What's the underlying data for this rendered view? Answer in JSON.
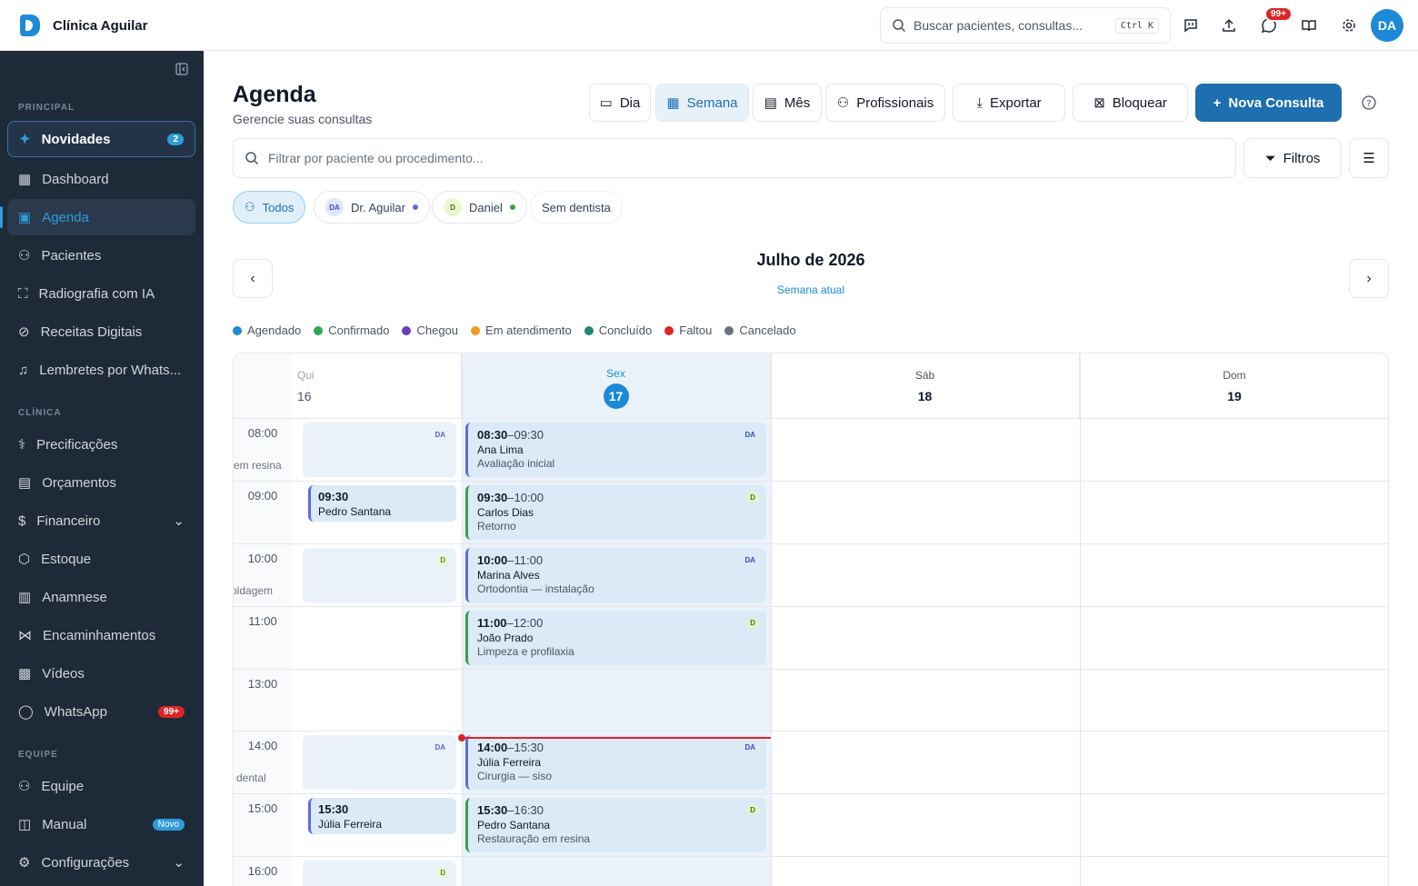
{
  "app": {
    "name": "Clínica Aguilar",
    "user_initials": "DA",
    "notif_badge": "99+"
  },
  "search": {
    "placeholder": "Buscar pacientes, consultas...",
    "shortcut": "Ctrl K"
  },
  "sidebar": {
    "sections": {
      "principal": "PRINCIPAL",
      "clinica": "CLÍNICA",
      "equipe": "EQUIPE"
    },
    "items": [
      {
        "label": "Novidades",
        "badge": "2"
      },
      {
        "label": "Dashboard"
      },
      {
        "label": "Agenda"
      },
      {
        "label": "Pacientes"
      },
      {
        "label": "Radiografia com IA"
      },
      {
        "label": "Receitas Digitais"
      },
      {
        "label": "Lembretes por Whats..."
      },
      {
        "label": "Precificações"
      },
      {
        "label": "Orçamentos"
      },
      {
        "label": "Financeiro"
      },
      {
        "label": "Estoque"
      },
      {
        "label": "Anamnese"
      },
      {
        "label": "Encaminhamentos"
      },
      {
        "label": "Vídeos"
      },
      {
        "label": "WhatsApp",
        "badge": "99+"
      },
      {
        "label": "Equipe"
      },
      {
        "label": "Manual",
        "badge": "Novo"
      },
      {
        "label": "Configurações"
      }
    ]
  },
  "page": {
    "title": "Agenda",
    "subtitle": "Gerencie suas consultas"
  },
  "toolbar": {
    "dia": "Dia",
    "semana": "Semana",
    "mes": "Mês",
    "profissionais": "Profissionais",
    "exportar": "Exportar",
    "bloquear": "Bloquear",
    "nova": "Nova Consulta"
  },
  "filter": {
    "placeholder": "Filtrar por paciente ou procedimento...",
    "filtros": "Filtros"
  },
  "chips": {
    "todos": "Todos",
    "aguilar": "Dr. Aguilar",
    "aguilar_ini": "DA",
    "daniel": "Daniel",
    "daniel_ini": "D",
    "sem": "Sem dentista"
  },
  "calendar": {
    "month": "Julho de 2026",
    "week_label": "Semana atual",
    "legend": [
      {
        "label": "Agendado",
        "color": "#1d8ad8"
      },
      {
        "label": "Confirmado",
        "color": "#2fa84f"
      },
      {
        "label": "Chegou",
        "color": "#6b3fb5"
      },
      {
        "label": "Em atendimento",
        "color": "#f29a1f"
      },
      {
        "label": "Concluído",
        "color": "#1f8a70"
      },
      {
        "label": "Faltou",
        "color": "#dc2626"
      },
      {
        "label": "Cancelado",
        "color": "#6b7280"
      }
    ],
    "days": [
      {
        "name": "Qui",
        "num": "16"
      },
      {
        "name": "Sex",
        "num": "17"
      },
      {
        "name": "Sáb",
        "num": "18"
      },
      {
        "name": "Dom",
        "num": "19"
      }
    ],
    "times": [
      "08:00",
      "09:00",
      "10:00",
      "11:00",
      "13:00",
      "14:00",
      "15:00",
      "16:00"
    ],
    "cut_labels": [
      "em resina",
      "oldagem",
      "dental"
    ],
    "thu": [
      {
        "time": "09:30",
        "patient": "Pedro Santana"
      },
      {
        "time": "15:30",
        "patient": "Júlia Ferreira"
      }
    ],
    "thu_tags": [
      "DA",
      "D",
      "DA",
      "D"
    ],
    "fri": [
      {
        "start": "08:30",
        "end": "09:30",
        "patient": "Ana Lima",
        "proc": "Avaliação inicial",
        "tag": "DA"
      },
      {
        "start": "09:30",
        "end": "10:00",
        "patient": "Carlos Dias",
        "proc": "Retorno",
        "tag": "D"
      },
      {
        "start": "10:00",
        "end": "11:00",
        "patient": "Marina Alves",
        "proc": "Ortodontia — instalação",
        "tag": "DA"
      },
      {
        "start": "11:00",
        "end": "12:00",
        "patient": "João Prado",
        "proc": "Limpeza e profilaxia",
        "tag": "D"
      },
      {
        "start": "14:00",
        "end": "15:30",
        "patient": "Júlia Ferreira",
        "proc": "Cirurgia — siso",
        "tag": "DA"
      },
      {
        "start": "15:30",
        "end": "16:30",
        "patient": "Pedro Santana",
        "proc": "Restauração em resina",
        "tag": "D"
      }
    ]
  }
}
